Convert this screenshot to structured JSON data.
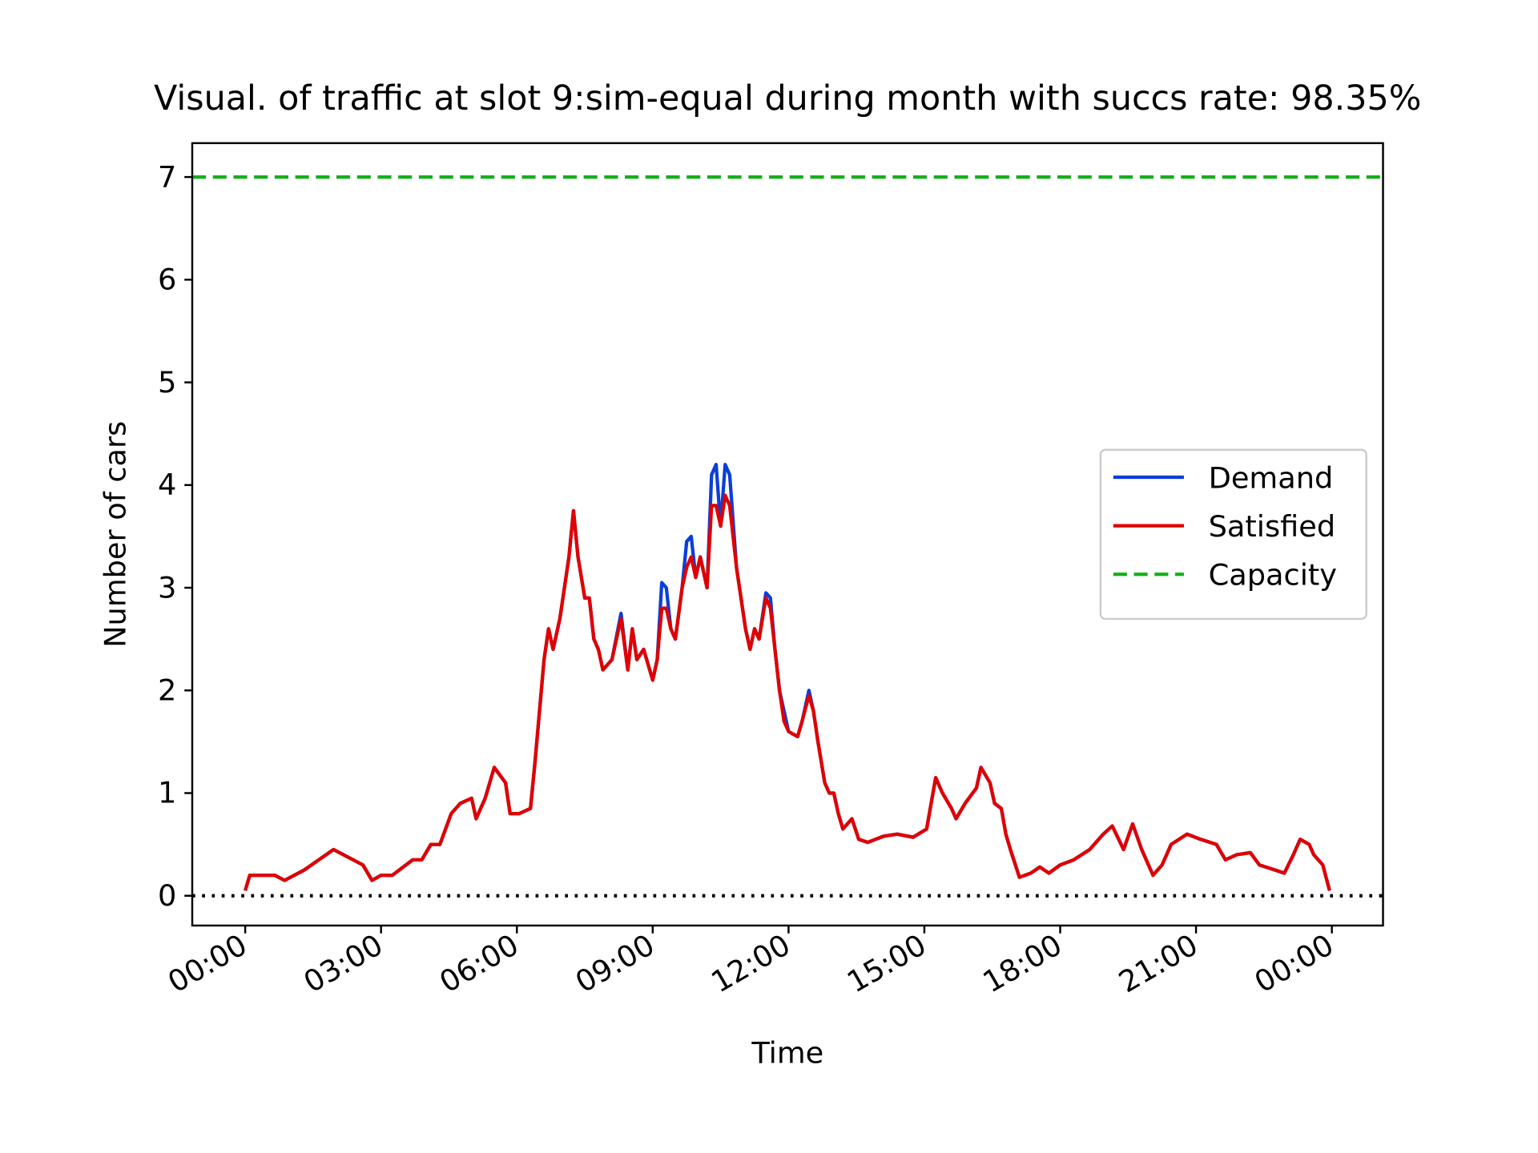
{
  "chart_data": {
    "type": "line",
    "title": "Visual. of traffic at slot 9:sim-equal during month with succs rate: 98.35%",
    "x_label": "Time",
    "y_label": "Number of cars",
    "x": [
      0,
      0.1,
      0.65,
      0.87,
      1.3,
      1.95,
      2.6,
      2.8,
      3.0,
      3.25,
      3.7,
      3.9,
      4.1,
      4.3,
      4.55,
      4.75,
      5.0,
      5.1,
      5.3,
      5.5,
      5.75,
      5.85,
      6.05,
      6.3,
      6.4,
      6.5,
      6.6,
      6.7,
      6.8,
      6.95,
      7.05,
      7.15,
      7.25,
      7.35,
      7.5,
      7.6,
      7.7,
      7.8,
      7.9,
      8.1,
      8.3,
      8.45,
      8.55,
      8.65,
      8.8,
      9.0,
      9.1,
      9.2,
      9.3,
      9.4,
      9.5,
      9.65,
      9.75,
      9.85,
      9.95,
      10.05,
      10.2,
      10.3,
      10.4,
      10.5,
      10.6,
      10.7,
      10.85,
      10.95,
      11.05,
      11.15,
      11.25,
      11.35,
      11.5,
      11.6,
      11.7,
      11.8,
      11.9,
      12.0,
      12.2,
      12.3,
      12.45,
      12.55,
      12.65,
      12.8,
      12.9,
      13.0,
      13.1,
      13.2,
      13.4,
      13.55,
      13.75,
      14.1,
      14.4,
      14.75,
      15.05,
      15.25,
      15.4,
      15.6,
      15.7,
      15.9,
      16.15,
      16.25,
      16.45,
      16.55,
      16.7,
      16.8,
      16.9,
      17.1,
      17.35,
      17.55,
      17.75,
      18.0,
      18.3,
      18.65,
      18.95,
      19.15,
      19.4,
      19.6,
      19.8,
      20.05,
      20.25,
      20.45,
      20.8,
      21.1,
      21.45,
      21.65,
      21.9,
      22.2,
      22.4,
      22.75,
      22.95,
      23.15,
      23.3,
      23.5,
      23.6,
      23.8,
      23.95
    ],
    "series": [
      {
        "name": "Demand",
        "color": "#0b3fd9",
        "values": [
          0.05,
          0.2,
          0.2,
          0.15,
          0.25,
          0.45,
          0.3,
          0.15,
          0.2,
          0.2,
          0.35,
          0.35,
          0.5,
          0.5,
          0.8,
          0.9,
          0.95,
          0.75,
          0.95,
          1.25,
          1.1,
          0.8,
          0.8,
          0.85,
          1.3,
          1.8,
          2.3,
          2.6,
          2.4,
          2.7,
          3.0,
          3.3,
          3.75,
          3.3,
          2.9,
          2.9,
          2.5,
          2.4,
          2.2,
          2.3,
          2.75,
          2.2,
          2.6,
          2.3,
          2.4,
          2.1,
          2.3,
          3.05,
          3.0,
          2.6,
          2.5,
          3.0,
          3.45,
          3.5,
          3.1,
          3.3,
          3.0,
          4.1,
          4.2,
          3.6,
          4.2,
          4.1,
          3.2,
          2.9,
          2.6,
          2.4,
          2.6,
          2.5,
          2.95,
          2.9,
          2.4,
          2.0,
          1.8,
          1.6,
          1.55,
          1.7,
          2.0,
          1.8,
          1.5,
          1.1,
          1.0,
          1.0,
          0.8,
          0.65,
          0.75,
          0.55,
          0.52,
          0.58,
          0.6,
          0.57,
          0.65,
          1.15,
          1.0,
          0.85,
          0.75,
          0.9,
          1.05,
          1.25,
          1.1,
          0.9,
          0.85,
          0.6,
          0.45,
          0.18,
          0.22,
          0.28,
          0.22,
          0.3,
          0.35,
          0.45,
          0.6,
          0.68,
          0.45,
          0.7,
          0.45,
          0.2,
          0.3,
          0.5,
          0.6,
          0.55,
          0.5,
          0.35,
          0.4,
          0.42,
          0.3,
          0.25,
          0.22,
          0.4,
          0.55,
          0.5,
          0.4,
          0.3,
          0.05
        ]
      },
      {
        "name": "Satisfied",
        "color": "#e00000",
        "values": [
          0.05,
          0.2,
          0.2,
          0.15,
          0.25,
          0.45,
          0.3,
          0.15,
          0.2,
          0.2,
          0.35,
          0.35,
          0.5,
          0.5,
          0.8,
          0.9,
          0.95,
          0.75,
          0.95,
          1.25,
          1.1,
          0.8,
          0.8,
          0.85,
          1.3,
          1.8,
          2.3,
          2.6,
          2.4,
          2.7,
          3.0,
          3.3,
          3.75,
          3.3,
          2.9,
          2.9,
          2.5,
          2.4,
          2.2,
          2.3,
          2.7,
          2.2,
          2.6,
          2.3,
          2.4,
          2.1,
          2.3,
          2.8,
          2.8,
          2.6,
          2.5,
          3.0,
          3.2,
          3.3,
          3.1,
          3.3,
          3.0,
          3.8,
          3.8,
          3.6,
          3.9,
          3.8,
          3.2,
          2.9,
          2.6,
          2.4,
          2.6,
          2.5,
          2.9,
          2.8,
          2.4,
          2.0,
          1.7,
          1.6,
          1.55,
          1.7,
          1.95,
          1.8,
          1.5,
          1.1,
          1.0,
          1.0,
          0.8,
          0.65,
          0.75,
          0.55,
          0.52,
          0.58,
          0.6,
          0.57,
          0.65,
          1.15,
          1.0,
          0.85,
          0.75,
          0.9,
          1.05,
          1.25,
          1.1,
          0.9,
          0.85,
          0.6,
          0.45,
          0.18,
          0.22,
          0.28,
          0.22,
          0.3,
          0.35,
          0.45,
          0.6,
          0.68,
          0.45,
          0.7,
          0.45,
          0.2,
          0.3,
          0.5,
          0.6,
          0.55,
          0.5,
          0.35,
          0.4,
          0.42,
          0.3,
          0.25,
          0.22,
          0.4,
          0.55,
          0.5,
          0.4,
          0.3,
          0.05
        ]
      }
    ],
    "reference_lines": [
      {
        "name": "Capacity",
        "value": 7,
        "color": "#15b01a",
        "style": "dashed"
      },
      {
        "value": 0,
        "color": "#000000",
        "style": "dotted"
      }
    ],
    "xlim": [
      -1.17,
      25.13
    ],
    "xticks": [
      {
        "value": 0,
        "label": "00:00"
      },
      {
        "value": 3,
        "label": "03:00"
      },
      {
        "value": 6,
        "label": "06:00"
      },
      {
        "value": 9,
        "label": "09:00"
      },
      {
        "value": 12,
        "label": "12:00"
      },
      {
        "value": 15,
        "label": "15:00"
      },
      {
        "value": 18,
        "label": "18:00"
      },
      {
        "value": 21,
        "label": "21:00"
      },
      {
        "value": 24,
        "label": "00:00"
      }
    ],
    "ylim": [
      -0.29,
      7.33
    ],
    "yticks": [
      0,
      1,
      2,
      3,
      4,
      5,
      6,
      7
    ],
    "grid": false,
    "legend": "center right"
  }
}
